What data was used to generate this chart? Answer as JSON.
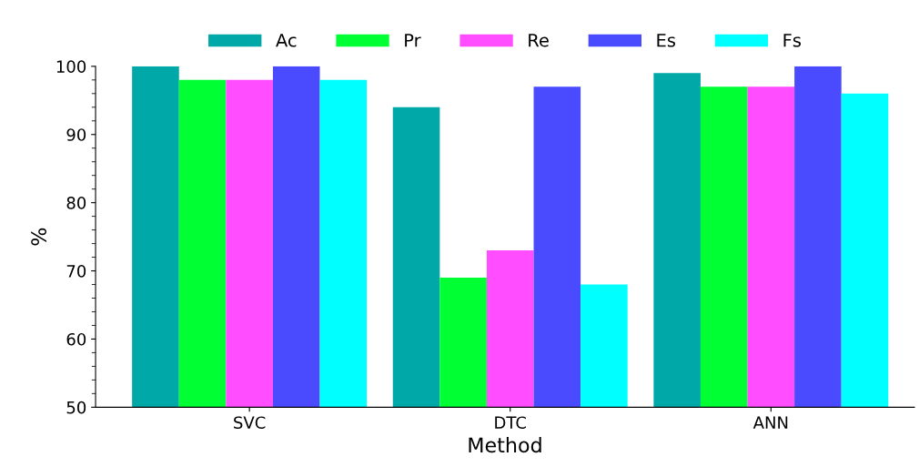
{
  "chart_data": {
    "type": "bar",
    "xlabel": "Method",
    "ylabel": "%",
    "categories": [
      "SVC",
      "DTC",
      "ANN"
    ],
    "series": [
      {
        "name": "Ac",
        "color": "#00a8a8",
        "values": [
          100,
          94,
          99
        ]
      },
      {
        "name": "Pr",
        "color": "#00ff33",
        "values": [
          98,
          69,
          97
        ]
      },
      {
        "name": "Re",
        "color": "#ff4dff",
        "values": [
          98,
          73,
          97
        ]
      },
      {
        "name": "Es",
        "color": "#4a4aff",
        "values": [
          100,
          97,
          100
        ]
      },
      {
        "name": "Fs",
        "color": "#00ffff",
        "values": [
          98,
          68,
          96
        ]
      }
    ],
    "ylim": [
      50,
      100
    ],
    "yticks": [
      50,
      60,
      70,
      80,
      90,
      100
    ],
    "grid": false,
    "legend": "top"
  }
}
